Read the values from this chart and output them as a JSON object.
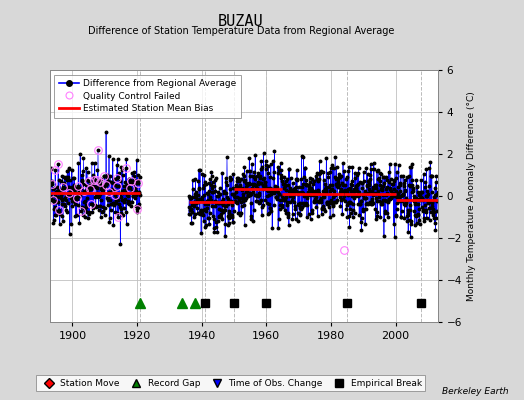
{
  "title": "BUZAU",
  "subtitle": "Difference of Station Temperature Data from Regional Average",
  "ylabel": "Monthly Temperature Anomaly Difference (°C)",
  "xlim": [
    1893,
    2013
  ],
  "ylim": [
    -6,
    6
  ],
  "yticks": [
    -6,
    -4,
    -2,
    0,
    2,
    4,
    6
  ],
  "xticks": [
    1900,
    1920,
    1940,
    1960,
    1980,
    2000
  ],
  "background_color": "#d8d8d8",
  "plot_bg_color": "#ffffff",
  "grid_color": "#c0c0c0",
  "data_color": "#0000ff",
  "data_marker_color": "#000000",
  "bias_color": "#ff0000",
  "qc_fail_color": "#ff80ff",
  "record_gap_color": "#008000",
  "time_obs_color": "#0000ff",
  "empirical_break_color": "#000000",
  "station_move_color": "#ff0000",
  "bias_segments": [
    {
      "start": 1893,
      "end": 1921,
      "bias": 0.15
    },
    {
      "start": 1936,
      "end": 1950,
      "bias": -0.28
    },
    {
      "start": 1950,
      "end": 1965,
      "bias": 0.35
    },
    {
      "start": 1965,
      "end": 1984,
      "bias": 0.08
    },
    {
      "start": 1984,
      "end": 2000,
      "bias": 0.08
    },
    {
      "start": 2000,
      "end": 2013,
      "bias": -0.2
    }
  ],
  "record_gaps": [
    1921,
    1934,
    1938
  ],
  "empirical_breaks": [
    1941,
    1950,
    1960,
    1985,
    2008
  ],
  "gap_start": 1921,
  "gap_end": 1936,
  "seed": 42
}
